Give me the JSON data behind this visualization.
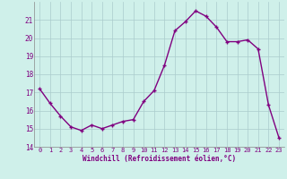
{
  "x": [
    0,
    1,
    2,
    3,
    4,
    5,
    6,
    7,
    8,
    9,
    10,
    11,
    12,
    13,
    14,
    15,
    16,
    17,
    18,
    19,
    20,
    21,
    22,
    23
  ],
  "y": [
    17.2,
    16.4,
    15.7,
    15.1,
    14.9,
    15.2,
    15.0,
    15.2,
    15.4,
    15.5,
    16.5,
    17.1,
    18.5,
    20.4,
    20.9,
    21.5,
    21.2,
    20.6,
    19.8,
    19.8,
    19.9,
    19.4,
    16.3,
    14.5
  ],
  "line_color": "#800080",
  "marker": "+",
  "marker_size": 3,
  "marker_lw": 1.0,
  "line_width": 1.0,
  "bg_color": "#cff0ea",
  "grid_color": "#aacccc",
  "xlabel": "Windchill (Refroidissement éolien,°C)",
  "xlabel_color": "#800080",
  "tick_color": "#800080",
  "ylim": [
    14,
    22
  ],
  "yticks": [
    14,
    15,
    16,
    17,
    18,
    19,
    20,
    21
  ],
  "xlim": [
    -0.5,
    23.5
  ],
  "xtick_fontsize": 5.0,
  "ytick_fontsize": 5.5,
  "xlabel_fontsize": 5.5
}
